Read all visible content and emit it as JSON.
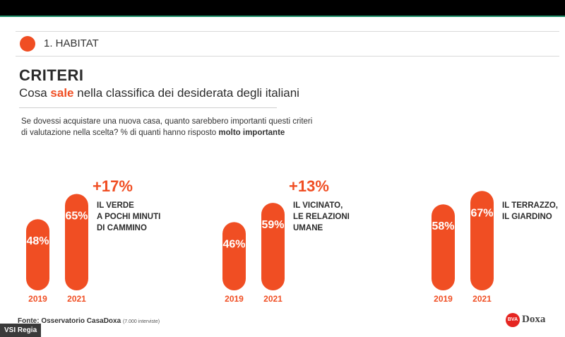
{
  "section": {
    "label": "1. HABITAT"
  },
  "header": {
    "title": "CRITERI",
    "subtitle_before": "Cosa ",
    "subtitle_accent": "sale",
    "subtitle_after": " nella classifica dei desiderata degli italiani"
  },
  "question": {
    "line1": "Se dovessi acquistare una nuova casa, quanto sarebbero importanti questi criteri",
    "line2": "di valutazione nella scelta? % di quanti hanno risposto ",
    "emphasis": "molto importante"
  },
  "source": {
    "label": "Fonte: Osservatorio CasaDoxa",
    "note": "(7.000 interviste)"
  },
  "logo": {
    "mark": "BVA",
    "name": "Doxa"
  },
  "watermark": "VSI Regia",
  "colors": {
    "accent": "#f04e23",
    "text": "#2b2b2b"
  },
  "chart_data": [
    {
      "type": "bar",
      "categories": [
        "2019",
        "2021"
      ],
      "values": [
        48,
        65
      ],
      "value_labels": [
        "48%",
        "65%"
      ],
      "change": "+17%",
      "label_lines": [
        "IL VERDE",
        "A POCHI MINUTI",
        "DI CAMMINO"
      ],
      "unit": "%"
    },
    {
      "type": "bar",
      "categories": [
        "2019",
        "2021"
      ],
      "values": [
        46,
        59
      ],
      "value_labels": [
        "46%",
        "59%"
      ],
      "change": "+13%",
      "label_lines": [
        "IL VICINATO,",
        "LE RELAZIONI",
        "UMANE"
      ],
      "unit": "%"
    },
    {
      "type": "bar",
      "categories": [
        "2019",
        "2021"
      ],
      "values": [
        58,
        67
      ],
      "value_labels": [
        "58%",
        "67%"
      ],
      "change": "",
      "label_lines": [
        "IL TERRAZZO,",
        "IL GIARDINO"
      ],
      "unit": "%"
    }
  ]
}
